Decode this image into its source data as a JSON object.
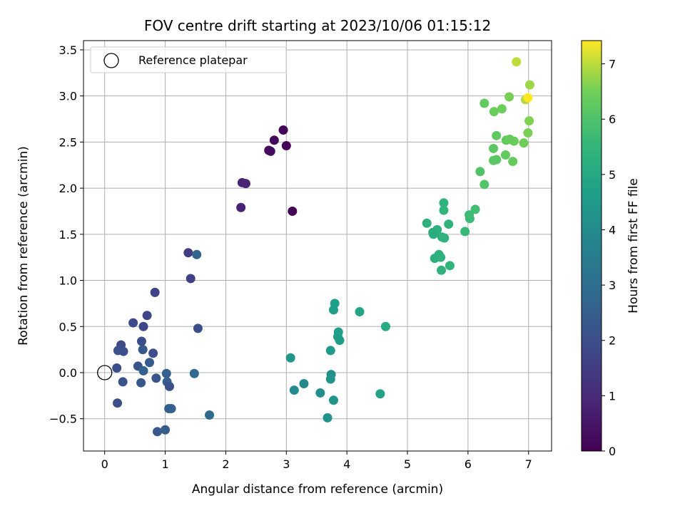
{
  "chart_data": {
    "type": "scatter",
    "title": "FOV centre drift starting at 2023/10/06 01:15:12",
    "xlabel": "Angular distance from reference (arcmin)",
    "ylabel": "Rotation from reference (arcmin)",
    "xlim": [
      -0.35,
      7.38
    ],
    "ylim": [
      -0.85,
      3.6
    ],
    "xticks": [
      0,
      1,
      2,
      3,
      4,
      5,
      6,
      7
    ],
    "xtick_labels": [
      "0",
      "1",
      "2",
      "3",
      "4",
      "5",
      "6",
      "7"
    ],
    "yticks": [
      -0.5,
      0.0,
      0.5,
      1.0,
      1.5,
      2.0,
      2.5,
      3.0,
      3.5
    ],
    "ytick_labels": [
      "−0.5",
      "0.0",
      "0.5",
      "1.0",
      "1.5",
      "2.0",
      "2.5",
      "3.0",
      "3.5"
    ],
    "grid": true,
    "legend": {
      "position": "upper-left",
      "entries": [
        {
          "label": "Reference platepar",
          "marker": "open-circle",
          "x": 0,
          "y": 0
        }
      ]
    },
    "colorbar": {
      "label": "Hours from first FF file",
      "colormap": "viridis",
      "range": [
        0,
        7.42
      ],
      "ticks": [
        0,
        1,
        2,
        3,
        4,
        5,
        6,
        7
      ],
      "tick_labels": [
        "0",
        "1",
        "2",
        "3",
        "4",
        "5",
        "6",
        "7"
      ]
    },
    "points": [
      {
        "x": 2.27,
        "y": 2.06,
        "c": 0.82
      },
      {
        "x": 2.33,
        "y": 2.05,
        "c": 0.85
      },
      {
        "x": 2.25,
        "y": 1.79,
        "c": 0.8
      },
      {
        "x": 2.71,
        "y": 2.41,
        "c": 0.3
      },
      {
        "x": 2.74,
        "y": 2.4,
        "c": 0.28
      },
      {
        "x": 2.8,
        "y": 2.52,
        "c": 0.2
      },
      {
        "x": 2.95,
        "y": 2.63,
        "c": 0.1
      },
      {
        "x": 3.0,
        "y": 2.46,
        "c": 0.05
      },
      {
        "x": 3.1,
        "y": 1.75,
        "c": 0.02
      },
      {
        "x": 1.38,
        "y": 1.3,
        "c": 1.5
      },
      {
        "x": 1.42,
        "y": 1.02,
        "c": 1.6
      },
      {
        "x": 1.52,
        "y": 1.28,
        "c": 2.7
      },
      {
        "x": 1.54,
        "y": 0.48,
        "c": 2.0
      },
      {
        "x": 0.83,
        "y": 0.87,
        "c": 1.7
      },
      {
        "x": 0.7,
        "y": 0.62,
        "c": 1.75
      },
      {
        "x": 0.47,
        "y": 0.54,
        "c": 1.85
      },
      {
        "x": 0.64,
        "y": 0.5,
        "c": 1.8
      },
      {
        "x": 0.61,
        "y": 0.34,
        "c": 2.0
      },
      {
        "x": 0.27,
        "y": 0.3,
        "c": 1.9
      },
      {
        "x": 0.22,
        "y": 0.24,
        "c": 2.1
      },
      {
        "x": 0.31,
        "y": 0.23,
        "c": 2.05
      },
      {
        "x": 0.63,
        "y": 0.25,
        "c": 2.3
      },
      {
        "x": 0.8,
        "y": 0.21,
        "c": 1.95
      },
      {
        "x": 0.74,
        "y": 0.11,
        "c": 2.4
      },
      {
        "x": 0.55,
        "y": 0.07,
        "c": 2.2
      },
      {
        "x": 0.2,
        "y": 0.05,
        "c": 2.0
      },
      {
        "x": 0.64,
        "y": 0.02,
        "c": 2.6
      },
      {
        "x": 1.02,
        "y": -0.01,
        "c": 2.5
      },
      {
        "x": 0.85,
        "y": -0.06,
        "c": 2.2
      },
      {
        "x": 1.03,
        "y": -0.1,
        "c": 2.45
      },
      {
        "x": 0.6,
        "y": -0.11,
        "c": 2.3
      },
      {
        "x": 0.3,
        "y": -0.1,
        "c": 2.15
      },
      {
        "x": 1.07,
        "y": -0.15,
        "c": 2.1
      },
      {
        "x": 1.48,
        "y": -0.01,
        "c": 2.8
      },
      {
        "x": 0.21,
        "y": -0.33,
        "c": 2.0
      },
      {
        "x": 1.06,
        "y": -0.39,
        "c": 2.4
      },
      {
        "x": 1.1,
        "y": -0.39,
        "c": 2.55
      },
      {
        "x": 0.87,
        "y": -0.64,
        "c": 2.3
      },
      {
        "x": 1.0,
        "y": -0.62,
        "c": 2.45
      },
      {
        "x": 1.73,
        "y": -0.46,
        "c": 2.9
      },
      {
        "x": 3.8,
        "y": 0.75,
        "c": 4.7
      },
      {
        "x": 3.78,
        "y": 0.68,
        "c": 4.65
      },
      {
        "x": 4.21,
        "y": 0.66,
        "c": 4.9
      },
      {
        "x": 4.64,
        "y": 0.5,
        "c": 5.0
      },
      {
        "x": 3.86,
        "y": 0.44,
        "c": 4.7
      },
      {
        "x": 3.85,
        "y": 0.39,
        "c": 4.7
      },
      {
        "x": 3.88,
        "y": 0.35,
        "c": 4.6
      },
      {
        "x": 3.73,
        "y": 0.24,
        "c": 4.5
      },
      {
        "x": 3.07,
        "y": 0.16,
        "c": 4.4
      },
      {
        "x": 3.74,
        "y": -0.02,
        "c": 4.2
      },
      {
        "x": 3.73,
        "y": -0.07,
        "c": 4.25
      },
      {
        "x": 3.29,
        "y": -0.12,
        "c": 3.9
      },
      {
        "x": 3.13,
        "y": -0.19,
        "c": 4.0
      },
      {
        "x": 3.56,
        "y": -0.22,
        "c": 4.1
      },
      {
        "x": 3.78,
        "y": -0.3,
        "c": 4.3
      },
      {
        "x": 4.55,
        "y": -0.23,
        "c": 4.8
      },
      {
        "x": 3.68,
        "y": -0.49,
        "c": 4.2
      },
      {
        "x": 5.6,
        "y": 1.84,
        "c": 5.4
      },
      {
        "x": 5.6,
        "y": 1.76,
        "c": 5.4
      },
      {
        "x": 5.32,
        "y": 1.62,
        "c": 5.3
      },
      {
        "x": 5.68,
        "y": 1.61,
        "c": 5.4
      },
      {
        "x": 5.42,
        "y": 1.52,
        "c": 5.2
      },
      {
        "x": 5.49,
        "y": 1.55,
        "c": 5.3
      },
      {
        "x": 5.43,
        "y": 1.5,
        "c": 5.2
      },
      {
        "x": 5.57,
        "y": 1.47,
        "c": 5.3
      },
      {
        "x": 5.61,
        "y": 1.46,
        "c": 5.35
      },
      {
        "x": 5.45,
        "y": 1.24,
        "c": 5.25
      },
      {
        "x": 5.52,
        "y": 1.28,
        "c": 5.3
      },
      {
        "x": 5.55,
        "y": 1.25,
        "c": 5.3
      },
      {
        "x": 5.56,
        "y": 1.11,
        "c": 5.35
      },
      {
        "x": 5.7,
        "y": 1.16,
        "c": 5.4
      },
      {
        "x": 5.95,
        "y": 1.53,
        "c": 5.6
      },
      {
        "x": 6.02,
        "y": 1.71,
        "c": 5.7
      },
      {
        "x": 6.03,
        "y": 1.67,
        "c": 5.7
      },
      {
        "x": 6.12,
        "y": 1.77,
        "c": 5.8
      },
      {
        "x": 6.2,
        "y": 2.18,
        "c": 6.0
      },
      {
        "x": 6.27,
        "y": 2.04,
        "c": 6.05
      },
      {
        "x": 6.42,
        "y": 2.3,
        "c": 6.2
      },
      {
        "x": 6.47,
        "y": 2.31,
        "c": 6.2
      },
      {
        "x": 6.42,
        "y": 2.43,
        "c": 6.2
      },
      {
        "x": 6.47,
        "y": 2.57,
        "c": 6.25
      },
      {
        "x": 6.62,
        "y": 2.36,
        "c": 6.3
      },
      {
        "x": 6.74,
        "y": 2.29,
        "c": 6.35
      },
      {
        "x": 6.63,
        "y": 2.52,
        "c": 6.3
      },
      {
        "x": 6.69,
        "y": 2.53,
        "c": 6.35
      },
      {
        "x": 6.76,
        "y": 2.51,
        "c": 6.4
      },
      {
        "x": 6.92,
        "y": 2.49,
        "c": 6.5
      },
      {
        "x": 6.99,
        "y": 2.6,
        "c": 6.55
      },
      {
        "x": 7.01,
        "y": 2.73,
        "c": 6.6
      },
      {
        "x": 6.27,
        "y": 2.92,
        "c": 6.3
      },
      {
        "x": 6.43,
        "y": 2.83,
        "c": 6.4
      },
      {
        "x": 6.56,
        "y": 2.86,
        "c": 6.45
      },
      {
        "x": 6.68,
        "y": 2.99,
        "c": 6.55
      },
      {
        "x": 6.95,
        "y": 2.96,
        "c": 6.9
      },
      {
        "x": 6.99,
        "y": 2.98,
        "c": 7.42
      },
      {
        "x": 7.02,
        "y": 3.12,
        "c": 6.8
      },
      {
        "x": 6.8,
        "y": 3.37,
        "c": 7.0
      }
    ]
  }
}
